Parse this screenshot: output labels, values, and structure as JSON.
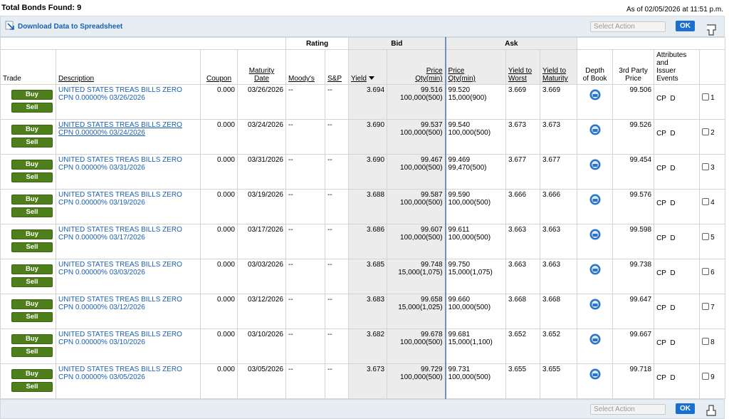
{
  "header": {
    "title": "Total Bonds Found: 9",
    "timestamp": "As of 02/05/2026 at 11:51 p.m."
  },
  "toolbar": {
    "download": "Download Data to Spreadsheet",
    "select_action": "Select Action",
    "ok": "OK"
  },
  "table": {
    "groups": {
      "rating": "Rating",
      "bid": "Bid",
      "ask": "Ask"
    },
    "columns": {
      "trade": "Trade",
      "description": "Description",
      "coupon": "Coupon",
      "maturity": "Maturity\nDate",
      "moodys": "Moody's",
      "sp": "S&P",
      "bid_yield": "Yield",
      "bid_price": "Price\nQty(min)",
      "ask_price": "Price\nQty(min)",
      "ytw": "Yield to\nWorst",
      "ytm": "Yield to\nMaturity",
      "depth": "Depth\nof Book",
      "third_party": "3rd Party\nPrice",
      "attributes": "Attributes\nand\nIssuer\nEvents"
    },
    "buy": "Buy",
    "sell": "Sell",
    "rows": [
      {
        "desc1": "UNITED STATES TREAS BILLS ZERO",
        "desc2": "CPN 0.00000% 03/26/2026",
        "coupon": "0.000",
        "maturity": "03/26/2026",
        "moodys": "--",
        "sp": "--",
        "bid_yield": "3.694",
        "bid_price": "99.516",
        "bid_qty": "100,000(500)",
        "ask_price": "99.520",
        "ask_qty": "15,000(900)",
        "ytw": "3.669",
        "ytm": "3.669",
        "third_party": "99.506",
        "attributes": "CP  D",
        "num": "1"
      },
      {
        "desc1": "UNITED STATES TREAS BILLS ZERO",
        "desc2": "CPN 0.00000% 03/24/2026",
        "coupon": "0.000",
        "maturity": "03/24/2026",
        "moodys": "--",
        "sp": "--",
        "bid_yield": "3.690",
        "bid_price": "99.537",
        "bid_qty": "100,000(500)",
        "ask_price": "99.540",
        "ask_qty": "100,000(500)",
        "ytw": "3.673",
        "ytm": "3.673",
        "third_party": "99.526",
        "attributes": "CP  D",
        "num": "2"
      },
      {
        "desc1": "UNITED STATES TREAS BILLS ZERO",
        "desc2": "CPN 0.00000% 03/31/2026",
        "coupon": "0.000",
        "maturity": "03/31/2026",
        "moodys": "--",
        "sp": "--",
        "bid_yield": "3.690",
        "bid_price": "99.467",
        "bid_qty": "100,000(500)",
        "ask_price": "99.469",
        "ask_qty": "99,470(500)",
        "ytw": "3.677",
        "ytm": "3.677",
        "third_party": "99.454",
        "attributes": "CP  D",
        "num": "3"
      },
      {
        "desc1": "UNITED STATES TREAS BILLS ZERO",
        "desc2": "CPN 0.00000% 03/19/2026",
        "coupon": "0.000",
        "maturity": "03/19/2026",
        "moodys": "--",
        "sp": "--",
        "bid_yield": "3.688",
        "bid_price": "99.587",
        "bid_qty": "100,000(500)",
        "ask_price": "99.590",
        "ask_qty": "100,000(500)",
        "ytw": "3.666",
        "ytm": "3.666",
        "third_party": "99.576",
        "attributes": "CP  D",
        "num": "4"
      },
      {
        "desc1": "UNITED STATES TREAS BILLS ZERO",
        "desc2": "CPN 0.00000% 03/17/2026",
        "coupon": "0.000",
        "maturity": "03/17/2026",
        "moodys": "--",
        "sp": "--",
        "bid_yield": "3.686",
        "bid_price": "99.607",
        "bid_qty": "100,000(500)",
        "ask_price": "99.611",
        "ask_qty": "100,000(500)",
        "ytw": "3.663",
        "ytm": "3.663",
        "third_party": "99.598",
        "attributes": "CP  D",
        "num": "5"
      },
      {
        "desc1": "UNITED STATES TREAS BILLS ZERO",
        "desc2": "CPN 0.00000% 03/03/2026",
        "coupon": "0.000",
        "maturity": "03/03/2026",
        "moodys": "--",
        "sp": "--",
        "bid_yield": "3.685",
        "bid_price": "99.748",
        "bid_qty": "15,000(1,075)",
        "ask_price": "99.750",
        "ask_qty": "15,000(1,075)",
        "ytw": "3.663",
        "ytm": "3.663",
        "third_party": "99.738",
        "attributes": "CP  D",
        "num": "6"
      },
      {
        "desc1": "UNITED STATES TREAS BILLS ZERO",
        "desc2": "CPN 0.00000% 03/12/2026",
        "coupon": "0.000",
        "maturity": "03/12/2026",
        "moodys": "--",
        "sp": "--",
        "bid_yield": "3.683",
        "bid_price": "99.658",
        "bid_qty": "15,000(1,025)",
        "ask_price": "99.660",
        "ask_qty": "100,000(500)",
        "ytw": "3.668",
        "ytm": "3.668",
        "third_party": "99.647",
        "attributes": "CP  D",
        "num": "7"
      },
      {
        "desc1": "UNITED STATES TREAS BILLS ZERO",
        "desc2": "CPN 0.00000% 03/10/2026",
        "coupon": "0.000",
        "maturity": "03/10/2026",
        "moodys": "--",
        "sp": "--",
        "bid_yield": "3.682",
        "bid_price": "99.678",
        "bid_qty": "100,000(500)",
        "ask_price": "99.681",
        "ask_qty": "15,000(1,100)",
        "ytw": "3.652",
        "ytm": "3.652",
        "third_party": "99.667",
        "attributes": "CP  D",
        "num": "8"
      },
      {
        "desc1": "UNITED STATES TREAS BILLS ZERO",
        "desc2": "CPN 0.00000% 03/05/2026",
        "coupon": "0.000",
        "maturity": "03/05/2026",
        "moodys": "--",
        "sp": "--",
        "bid_yield": "3.673",
        "bid_price": "99.729",
        "bid_qty": "100,000(500)",
        "ask_price": "99.731",
        "ask_qty": "100,000(500)",
        "ytw": "3.655",
        "ytm": "3.655",
        "third_party": "99.718",
        "attributes": "CP  D",
        "num": "9"
      }
    ]
  },
  "footer": {
    "select_action": "Select Action",
    "ok": "OK"
  }
}
